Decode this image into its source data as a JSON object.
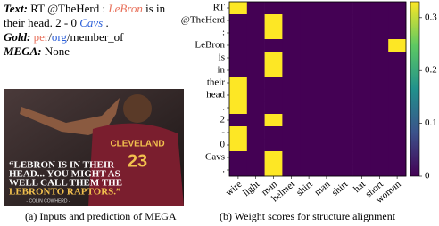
{
  "left_panel": {
    "text_label": "Text:",
    "text_segments": [
      "RT @TheHerd : ",
      "LeBron",
      " is in their head. 2 - 0 ",
      "Cavs",
      " ."
    ],
    "gold_label": "Gold:",
    "gold_segments": [
      "per",
      "/",
      "org",
      "/member_of"
    ],
    "mega_label": "MEGA:",
    "mega_value": "None",
    "image": {
      "team": "CLEVELAND",
      "number": "23",
      "quote_lines": [
        "“LEBRON IS IN THEIR",
        "HEAD... YOU MIGHT AS",
        "WELL CALL THEM THE",
        "LEBRONTO RAPTORS.”"
      ],
      "attribution": "- COLIN COWHERD -"
    },
    "caption": "(a) Inputs and prediction of MEGA"
  },
  "chart_data": {
    "type": "heatmap",
    "rows": [
      "RT",
      "@TheHerd",
      ":",
      "LeBron",
      "is",
      "in",
      "their",
      "head",
      ".",
      "2",
      "-",
      "0",
      "Cavs",
      "."
    ],
    "columns": [
      "wire",
      "light",
      "man",
      "helmet",
      "shirt",
      "man",
      "shirt",
      "hat",
      "short",
      "woman"
    ],
    "values": [
      [
        0.33,
        0,
        0,
        0,
        0,
        0,
        0,
        0,
        0,
        0
      ],
      [
        0,
        0,
        0.33,
        0,
        0,
        0,
        0,
        0,
        0,
        0
      ],
      [
        0,
        0,
        0.33,
        0,
        0,
        0,
        0,
        0,
        0,
        0
      ],
      [
        0,
        0,
        0,
        0,
        0,
        0,
        0,
        0,
        0,
        0.33
      ],
      [
        0,
        0,
        0.33,
        0,
        0,
        0,
        0,
        0,
        0,
        0
      ],
      [
        0,
        0,
        0.33,
        0,
        0,
        0,
        0,
        0,
        0,
        0
      ],
      [
        0.33,
        0,
        0,
        0,
        0,
        0,
        0,
        0,
        0,
        0
      ],
      [
        0.33,
        0,
        0,
        0,
        0,
        0,
        0,
        0,
        0,
        0
      ],
      [
        0.33,
        0,
        0,
        0,
        0,
        0,
        0,
        0,
        0,
        0
      ],
      [
        0,
        0,
        0.33,
        0,
        0,
        0,
        0,
        0,
        0,
        0
      ],
      [
        0.33,
        0,
        0,
        0,
        0,
        0,
        0,
        0,
        0,
        0
      ],
      [
        0.33,
        0,
        0,
        0,
        0,
        0,
        0,
        0,
        0,
        0
      ],
      [
        0,
        0,
        0.33,
        0,
        0,
        0,
        0,
        0,
        0,
        0
      ],
      [
        0,
        0,
        0.33,
        0,
        0,
        0,
        0,
        0,
        0,
        0
      ]
    ],
    "colormap": "viridis",
    "clim": [
      0,
      0.33
    ],
    "cticks": [
      0,
      0.1,
      0.2,
      0.3
    ],
    "caption": "(b) Weight scores for structure alignment"
  }
}
